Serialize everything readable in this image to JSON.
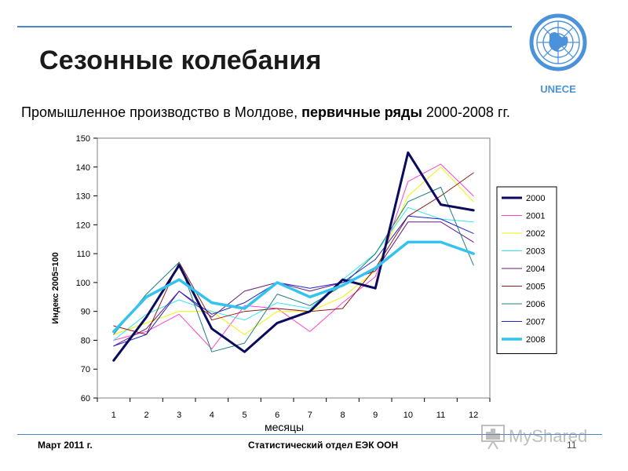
{
  "slide": {
    "title": "Сезонные колебания",
    "subtitle_pre": "Промышленное производство в Молдове, ",
    "subtitle_bold": "первичные ряды",
    "subtitle_post": " 2000-2008 гг.",
    "logo_text": "UNECE",
    "footer_left": "Март 2011 г.",
    "footer_center": "Статистический отдел ЕЭК ООН",
    "page_number": "11",
    "watermark": "MyShared"
  },
  "colors": {
    "accent_rule": "#4a86c8",
    "un_blue": "#4b92db"
  },
  "chart_data": {
    "type": "line",
    "title": "",
    "xlabel": "месяцы",
    "ylabel": "Индекс 2005=100",
    "ylim": [
      60,
      150
    ],
    "y_ticks": [
      60,
      70,
      80,
      90,
      100,
      110,
      120,
      130,
      140,
      150
    ],
    "grid": true,
    "legend_position": "right",
    "categories": [
      "1",
      "2",
      "3",
      "4",
      "5",
      "6",
      "7",
      "8",
      "9",
      "10",
      "11",
      "12"
    ],
    "series": [
      {
        "name": "2000",
        "color": "#0a0a5e",
        "width": 3,
        "values": [
          73,
          88,
          106,
          84,
          76,
          86,
          90,
          101,
          98,
          145,
          127,
          125
        ]
      },
      {
        "name": "2001",
        "color": "#ff44cc",
        "width": 1,
        "values": [
          80,
          83,
          89,
          77,
          92,
          91,
          83,
          93,
          102,
          135,
          141,
          130
        ]
      },
      {
        "name": "2002",
        "color": "#f2f200",
        "width": 1,
        "values": [
          82,
          86,
          90,
          90,
          82,
          90,
          90,
          95,
          104,
          130,
          140,
          128
        ]
      },
      {
        "name": "2003",
        "color": "#33e6f2",
        "width": 1,
        "values": [
          80,
          89,
          94,
          90,
          87,
          93,
          91,
          101,
          110,
          126,
          122,
          121
        ]
      },
      {
        "name": "2004",
        "color": "#6a1a7a",
        "width": 1,
        "values": [
          78,
          84,
          97,
          88,
          97,
          100,
          97,
          100,
          104,
          121,
          121,
          114
        ]
      },
      {
        "name": "2005",
        "color": "#8a1d1d",
        "width": 1,
        "values": [
          85,
          82,
          107,
          87,
          90,
          91,
          90,
          91,
          105,
          123,
          130,
          138
        ]
      },
      {
        "name": "2006",
        "color": "#1f7f7f",
        "width": 1,
        "values": [
          82,
          96,
          107,
          76,
          79,
          96,
          92,
          99,
          110,
          128,
          133,
          106
        ]
      },
      {
        "name": "2007",
        "color": "#2222cc",
        "width": 1,
        "values": [
          78,
          82,
          97,
          89,
          93,
          100,
          98,
          100,
          108,
          123,
          122,
          117
        ]
      },
      {
        "name": "2008",
        "color": "#33c3ee",
        "width": 3.5,
        "values": [
          83,
          95,
          101,
          93,
          91,
          100,
          95,
          99,
          105,
          114,
          114,
          110
        ]
      }
    ]
  }
}
